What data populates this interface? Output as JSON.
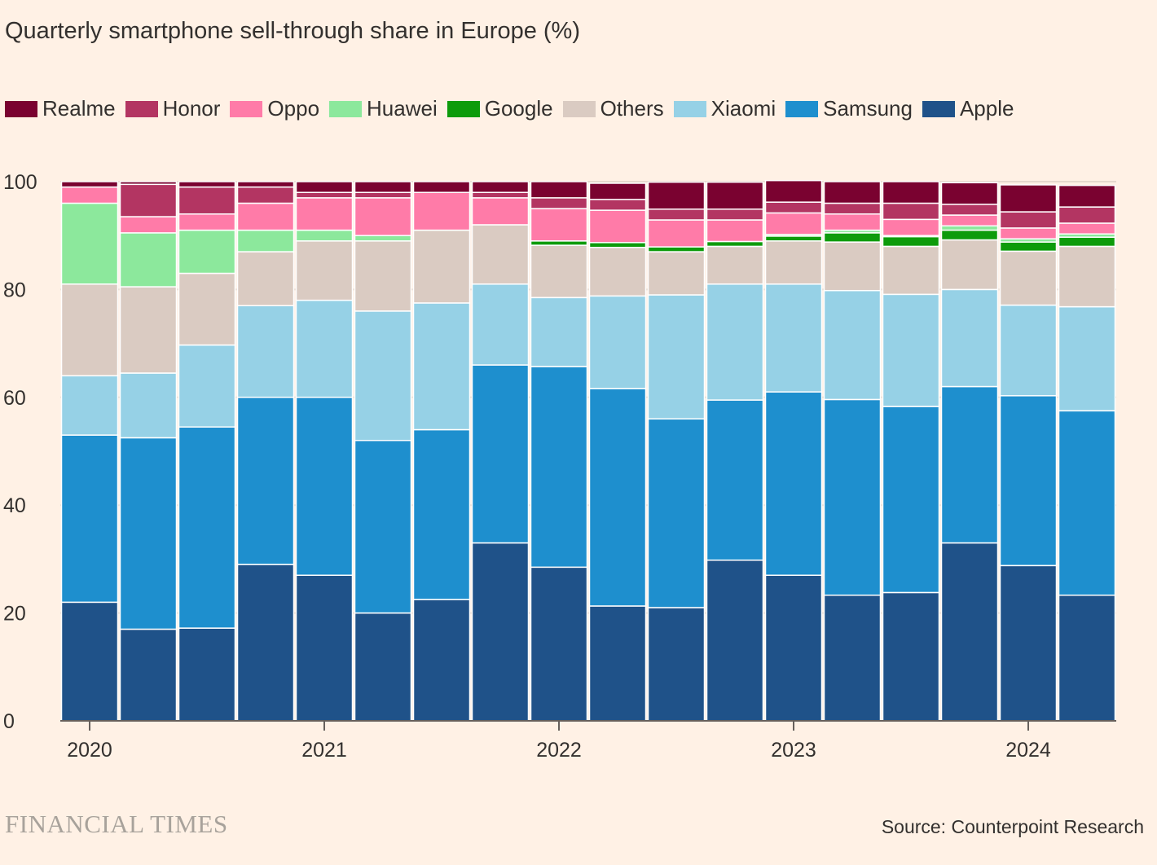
{
  "chart_data": {
    "type": "bar",
    "stacked": true,
    "title": "Quarterly smartphone sell-through share in Europe (%)",
    "xlabel": "",
    "ylabel": "",
    "ylim": [
      0,
      100
    ],
    "yticks": [
      0,
      20,
      40,
      60,
      80,
      100
    ],
    "grid": true,
    "legend_position": "top",
    "categories": [
      "2020 Q1",
      "2020 Q2",
      "2020 Q3",
      "2020 Q4",
      "2021 Q1",
      "2021 Q2",
      "2021 Q3",
      "2021 Q4",
      "2022 Q1",
      "2022 Q2",
      "2022 Q3",
      "2022 Q4",
      "2023 Q1",
      "2023 Q2",
      "2023 Q3",
      "2023 Q4",
      "2024 Q1",
      "2024 Q2"
    ],
    "year_labels": [
      {
        "label": "2020",
        "category_index": 0
      },
      {
        "label": "2021",
        "category_index": 4
      },
      {
        "label": "2022",
        "category_index": 8
      },
      {
        "label": "2023",
        "category_index": 12
      },
      {
        "label": "2024",
        "category_index": 16
      }
    ],
    "legend_order": [
      "Realme",
      "Honor",
      "Oppo",
      "Huawei",
      "Google",
      "Others",
      "Xiaomi",
      "Samsung",
      "Apple"
    ],
    "series": [
      {
        "name": "Apple",
        "color": "#1F5289",
        "values": [
          22,
          17,
          17.2,
          29,
          27,
          20,
          22.5,
          33,
          28.5,
          21.3,
          21,
          29.8,
          27,
          23.3,
          23.8,
          33,
          28.8,
          23.3
        ]
      },
      {
        "name": "Samsung",
        "color": "#1E8FCE",
        "values": [
          31,
          35.5,
          37.3,
          31,
          33,
          32,
          31.5,
          33,
          37.2,
          40.3,
          35,
          29.7,
          34,
          36.3,
          34.5,
          29,
          31.5,
          34.2
        ]
      },
      {
        "name": "Xiaomi",
        "color": "#96D1E6",
        "values": [
          11,
          12,
          15.2,
          17,
          18,
          24,
          23.5,
          15,
          12.8,
          17.2,
          23,
          21.5,
          20,
          20.2,
          20.8,
          18,
          16.8,
          19.3
        ]
      },
      {
        "name": "Others",
        "color": "#DACBC2",
        "values": [
          17,
          16,
          13.3,
          10,
          11,
          13,
          13.5,
          11,
          9.7,
          9,
          8,
          7,
          8,
          9,
          8.9,
          9.2,
          10,
          11.2
        ]
      },
      {
        "name": "Google",
        "color": "#0D9B0B",
        "values": [
          0,
          0,
          0,
          0,
          0,
          0,
          0,
          0,
          0.8,
          0.9,
          0.9,
          0.9,
          0.9,
          1.7,
          1.8,
          1.8,
          1.7,
          1.7
        ]
      },
      {
        "name": "Huawei",
        "color": "#8CE89C",
        "values": [
          15,
          10,
          8,
          4,
          2,
          1,
          0,
          0,
          0,
          0,
          0,
          0,
          0.3,
          0.5,
          0.2,
          0.8,
          0.6,
          0.6
        ]
      },
      {
        "name": "Oppo",
        "color": "#FF7BA8",
        "values": [
          3,
          3,
          3,
          5,
          6,
          7,
          7,
          5,
          6,
          6,
          5,
          4,
          4,
          3,
          3,
          2,
          2,
          2
        ]
      },
      {
        "name": "Honor",
        "color": "#B33562",
        "values": [
          0,
          6,
          5,
          3,
          1,
          1,
          0,
          1,
          2,
          2,
          2,
          2,
          2,
          2,
          3,
          2,
          3,
          3
        ]
      },
      {
        "name": "Realme",
        "color": "#7A0230",
        "values": [
          1,
          0.5,
          1,
          1,
          2,
          2,
          2,
          2,
          3,
          3,
          5,
          5,
          4,
          4,
          4,
          4,
          5,
          4
        ]
      }
    ]
  },
  "footer": {
    "logo": "FINANCIAL TIMES",
    "source": "Source: Counterpoint Research"
  }
}
